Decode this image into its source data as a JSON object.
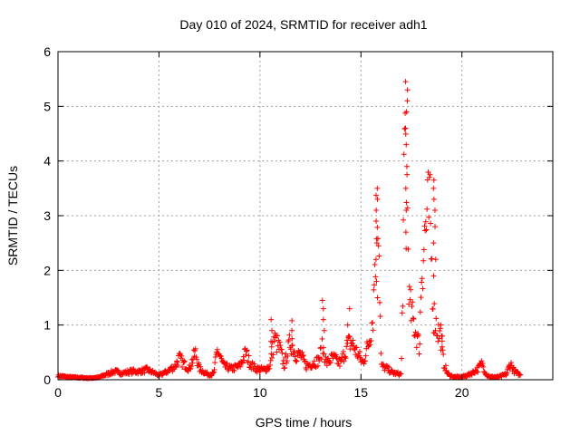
{
  "chart_data": {
    "type": "scatter",
    "title": "Day 010 of 2024, SRMTID for receiver adh1",
    "xlabel": "GPS time / hours",
    "ylabel": "SRMTID / TECUs",
    "xlim": [
      0,
      24.5
    ],
    "ylim": [
      0,
      6
    ],
    "xticks": [
      0,
      5,
      10,
      15,
      20
    ],
    "yticks": [
      0,
      1,
      2,
      3,
      4,
      5,
      6
    ],
    "grid": true,
    "marker": "+",
    "color": "#ff0000",
    "series": [
      {
        "name": "SRMTID",
        "profile_hours": [
          0.0,
          0.5,
          1.0,
          1.5,
          2.0,
          2.4,
          2.8,
          3.2,
          3.6,
          4.0,
          4.4,
          4.8,
          5.0,
          5.4,
          5.8,
          6.0,
          6.2,
          6.5,
          6.8,
          7.0,
          7.4,
          7.7,
          7.9,
          8.2,
          8.6,
          9.0,
          9.3,
          9.5,
          9.8,
          10.2,
          10.5,
          10.7,
          11.0,
          11.2,
          11.5,
          11.8,
          12.0,
          12.3,
          12.6,
          12.9,
          13.1,
          13.3,
          13.6,
          14.0,
          14.3,
          14.5,
          14.8,
          15.1,
          15.4,
          15.6,
          15.75,
          15.85,
          16.0,
          16.3,
          16.6,
          17.0,
          17.1,
          17.2,
          17.3,
          17.4,
          17.5,
          17.7,
          17.9,
          18.0,
          18.2,
          18.4,
          18.6,
          18.8,
          18.95,
          19.1,
          19.3,
          19.6,
          20.0,
          20.4,
          20.8,
          21.0,
          21.2,
          21.4,
          21.8,
          22.2,
          22.4,
          22.6,
          22.9
        ],
        "profile_values": [
          0.07,
          0.05,
          0.04,
          0.03,
          0.04,
          0.1,
          0.15,
          0.12,
          0.15,
          0.15,
          0.18,
          0.12,
          0.08,
          0.15,
          0.25,
          0.4,
          0.3,
          0.2,
          0.5,
          0.2,
          0.1,
          0.1,
          0.55,
          0.25,
          0.2,
          0.25,
          0.5,
          0.3,
          0.2,
          0.18,
          0.25,
          0.75,
          0.55,
          0.25,
          0.7,
          0.45,
          0.45,
          0.25,
          0.3,
          0.35,
          0.6,
          0.3,
          0.4,
          0.3,
          0.6,
          0.7,
          0.5,
          0.3,
          0.7,
          1.2,
          2.8,
          3.4,
          0.25,
          0.2,
          0.12,
          0.1,
          2.6,
          4.6,
          3.2,
          1.4,
          1.2,
          0.9,
          0.6,
          2.0,
          2.8,
          3.1,
          1.2,
          0.9,
          0.8,
          0.3,
          0.1,
          0.05,
          0.05,
          0.1,
          0.2,
          0.3,
          0.1,
          0.05,
          0.05,
          0.1,
          0.3,
          0.15,
          0.08
        ],
        "spikes": [
          {
            "x": 10.6,
            "values": [
              1.1,
              0.9,
              0.7,
              0.6
            ]
          },
          {
            "x": 11.6,
            "values": [
              1.08,
              0.9,
              0.75
            ]
          },
          {
            "x": 13.15,
            "values": [
              1.45,
              1.3,
              1.1,
              0.9
            ]
          },
          {
            "x": 14.4,
            "values": [
              1.3,
              1.0,
              0.8
            ]
          },
          {
            "x": 15.8,
            "values": [
              3.5,
              3.3,
              3.1,
              2.9,
              2.5,
              2.2,
              1.8,
              1.5
            ]
          },
          {
            "x": 17.25,
            "values": [
              5.45,
              5.3,
              5.1,
              4.9,
              4.6,
              4.3,
              3.9,
              3.5,
              3.1,
              2.7,
              2.4
            ]
          },
          {
            "x": 18.65,
            "values": [
              3.65,
              3.5,
              3.3,
              3.1,
              2.8,
              2.5,
              2.2,
              1.9
            ]
          },
          {
            "x": 19.0,
            "values": [
              1.0,
              0.8,
              0.6
            ]
          }
        ]
      }
    ]
  }
}
